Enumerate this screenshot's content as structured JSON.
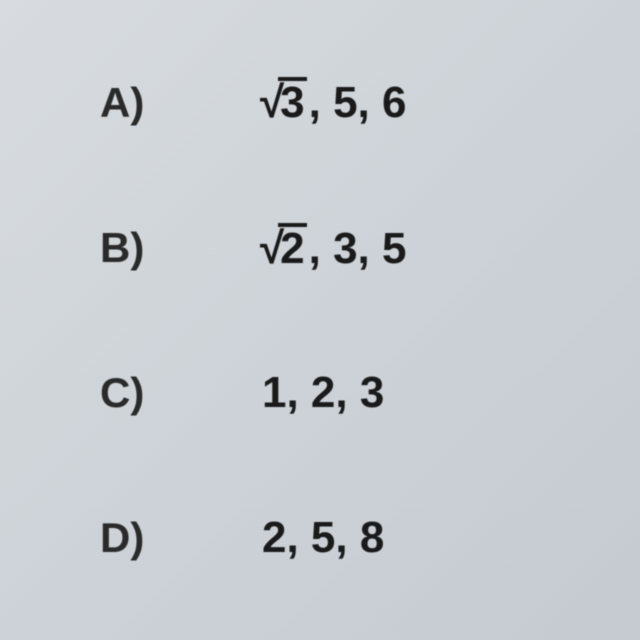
{
  "options": [
    {
      "label": "A)",
      "has_sqrt": true,
      "sqrt_arg": "3",
      "rest": ", 5, 6"
    },
    {
      "label": "B)",
      "has_sqrt": true,
      "sqrt_arg": "2",
      "rest": ", 3, 5"
    },
    {
      "label": "C)",
      "has_sqrt": false,
      "sqrt_arg": "",
      "rest": "1, 2, 3"
    },
    {
      "label": "D)",
      "has_sqrt": false,
      "sqrt_arg": "",
      "rest": "2, 5, 8"
    }
  ],
  "styling": {
    "background_gradient_start": "#d8dce0",
    "background_gradient_end": "#c5cbd0",
    "text_color": "#2a2a2a",
    "value_color": "#1a1a1a",
    "label_fontsize": 42,
    "value_fontsize": 44,
    "font_weight": "bold",
    "sqrt_bar_thickness": 4
  }
}
